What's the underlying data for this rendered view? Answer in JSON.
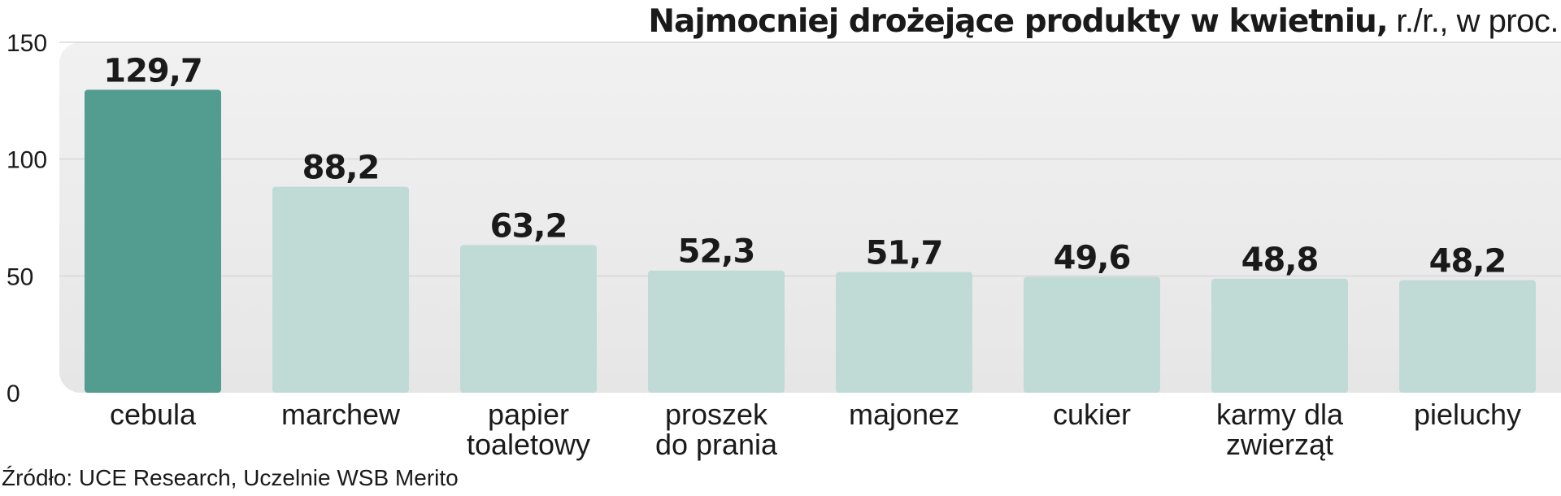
{
  "title": {
    "main": "Najmocniej drożejące produkty w kwietniu,",
    "sub": " r./r., w proc."
  },
  "source": "Źródło: UCE Research, Uczelnie WSB Merito",
  "chart_data": {
    "type": "bar",
    "title": "Najmocniej drożejące produkty w kwietniu, r./r., w proc.",
    "categories": [
      [
        "cebula"
      ],
      [
        "marchew"
      ],
      [
        "papier",
        "toaletowy"
      ],
      [
        "proszek",
        "do prania"
      ],
      [
        "majonez"
      ],
      [
        "cukier"
      ],
      [
        "karmy dla",
        "zwierząt"
      ],
      [
        "pieluchy"
      ]
    ],
    "values": [
      129.7,
      88.2,
      63.2,
      52.3,
      51.7,
      49.6,
      48.8,
      48.2
    ],
    "value_labels": [
      "129,7",
      "88,2",
      "63,2",
      "52,3",
      "51,7",
      "49,6",
      "48,8",
      "48,2"
    ],
    "yticks": [
      0,
      50,
      100,
      150
    ],
    "ylim": [
      0,
      150
    ],
    "xlabel": "",
    "ylabel": "",
    "grid": true,
    "legend": "none",
    "colors": {
      "highlight_bar": "#529d8f",
      "bar": "#c0dbd5",
      "plot_background": "#ebebeb",
      "gridline": "#d8d8d8",
      "text": "#1a1a1a"
    }
  }
}
